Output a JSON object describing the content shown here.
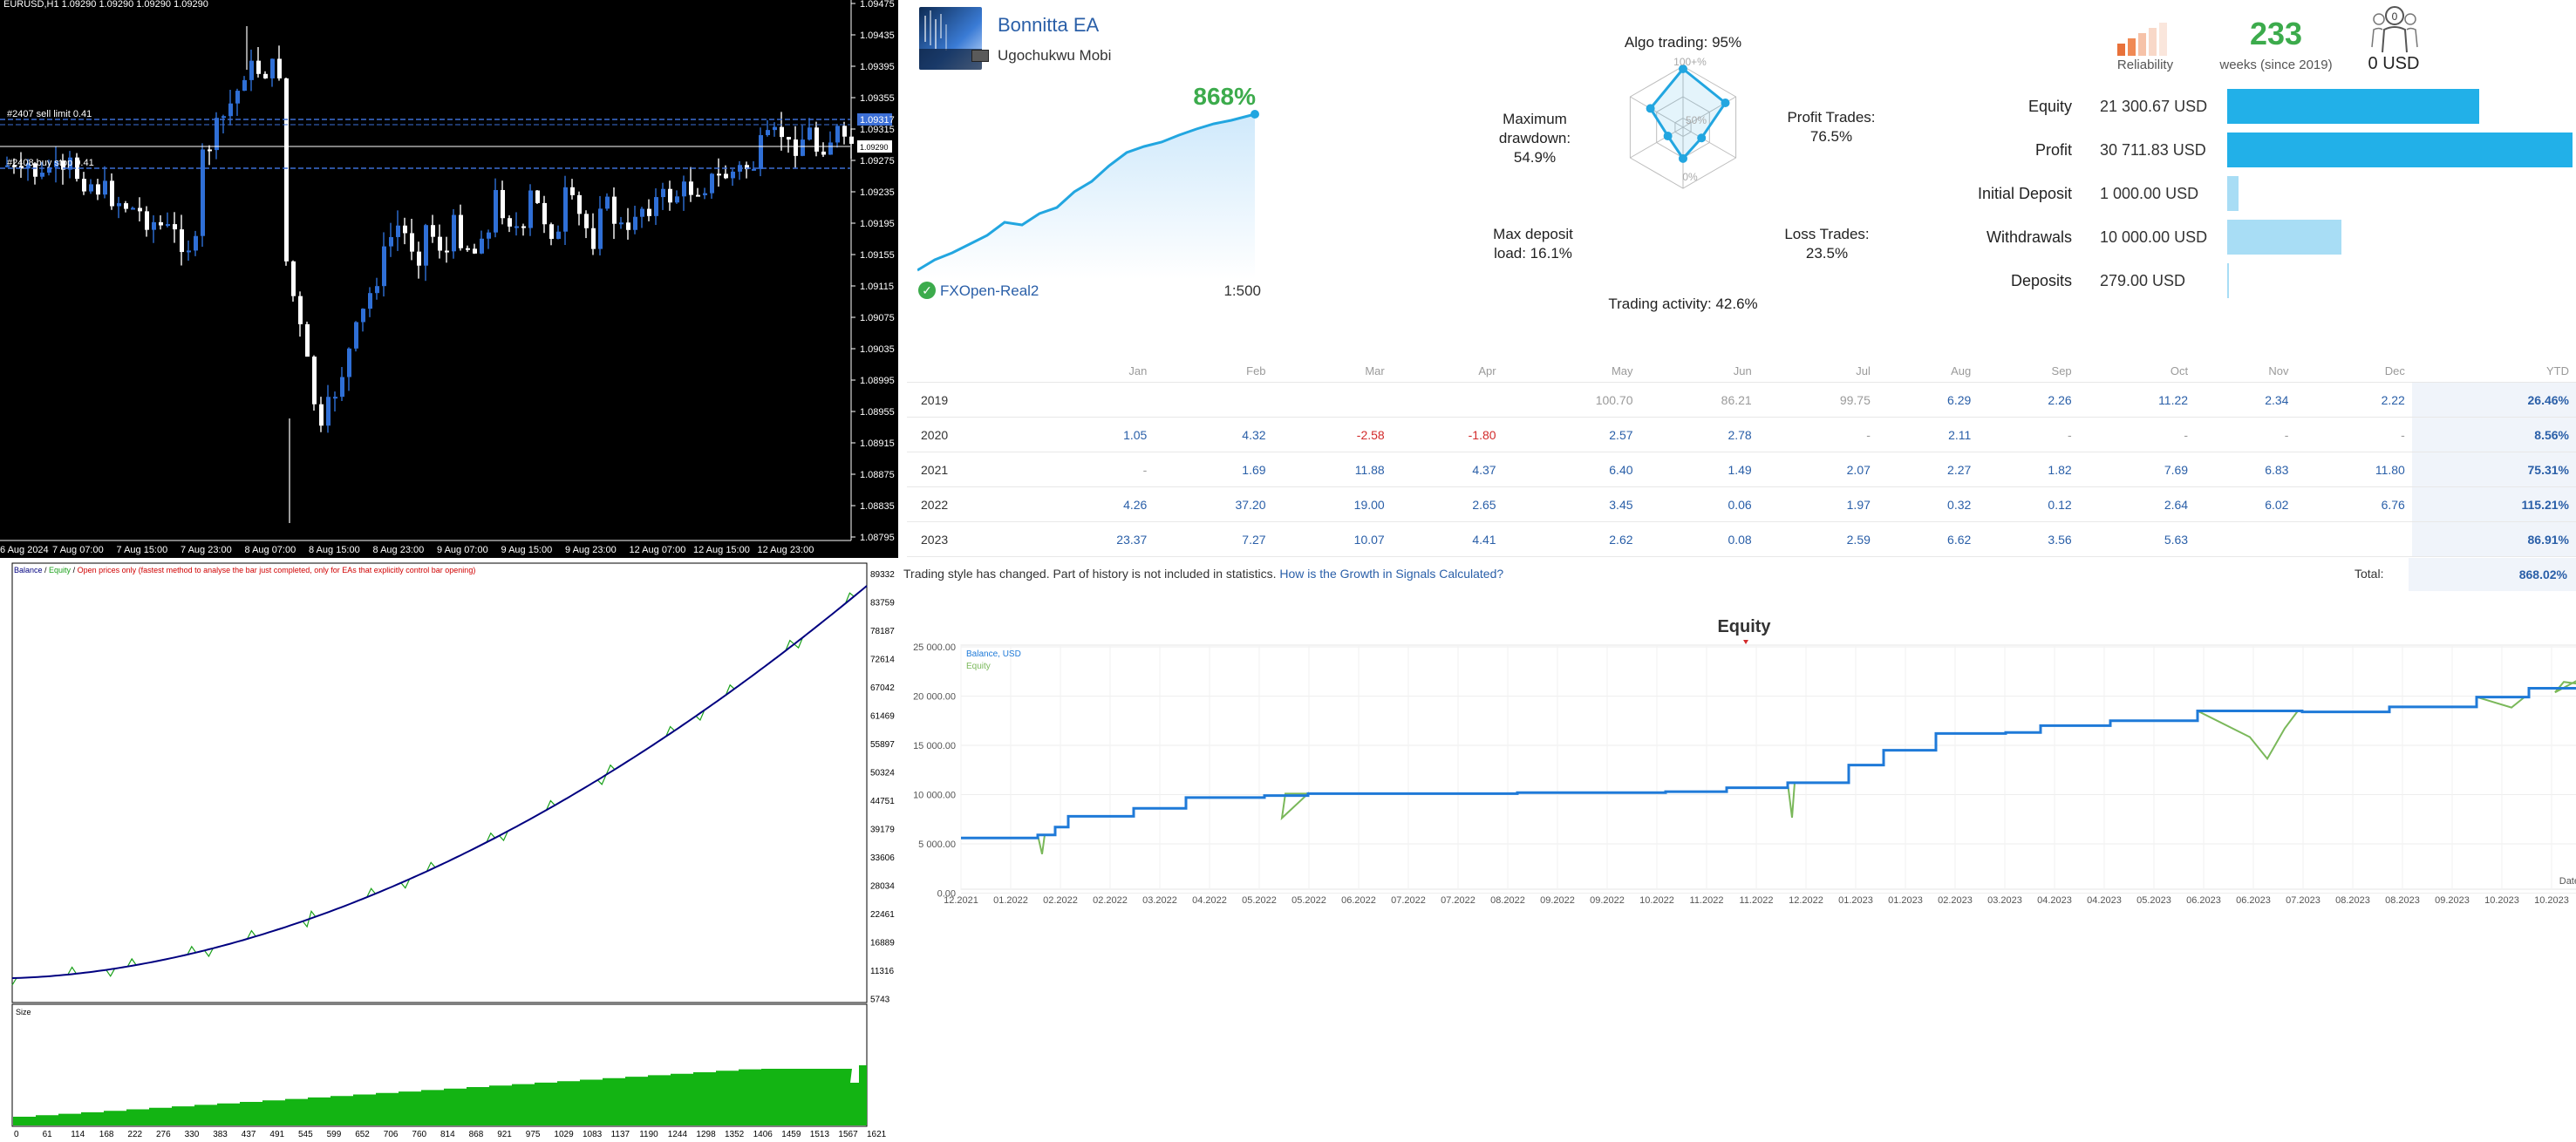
{
  "candle_chart": {
    "header": "EURUSD,H1  1.09290 1.09290 1.09290 1.09290",
    "sell_limit_label": "#2407 sell limit 0.41",
    "buy_stop_label": "#2408 buy stop 0.41",
    "price_ticks": [
      "1.09475",
      "1.09435",
      "1.09395",
      "1.09355",
      "1.09315",
      "1.09275",
      "1.09235",
      "1.09195",
      "1.09155",
      "1.09115",
      "1.09075",
      "1.09035",
      "1.08995",
      "1.08955",
      "1.08915",
      "1.08875",
      "1.08835",
      "1.08795"
    ],
    "current_price": "1.09290",
    "sell_limit_price": "1.09317",
    "time_labels": [
      "6 Aug 2024",
      "7 Aug 07:00",
      "7 Aug 15:00",
      "7 Aug 23:00",
      "8 Aug 07:00",
      "8 Aug 15:00",
      "8 Aug 23:00",
      "9 Aug 07:00",
      "9 Aug 15:00",
      "9 Aug 23:00",
      "12 Aug 07:00",
      "12 Aug 15:00",
      "12 Aug 23:00"
    ],
    "colors": {
      "bull": "#2f6fd6",
      "bear": "#ffffff",
      "line": "#ffffff",
      "order": "#3c6fd6"
    }
  },
  "tester_chart": {
    "legend_balance": "Balance",
    "legend_sep1": " / ",
    "legend_equity": "Equity",
    "legend_sep2": " / ",
    "legend_mode": "Open prices only (fastest method to analyse the bar just completed, only for EAs that explicitly control bar opening)",
    "y_ticks": [
      "89332",
      "83759",
      "78187",
      "72614",
      "67042",
      "61469",
      "55897",
      "50324",
      "44751",
      "39179",
      "33606",
      "28034",
      "22461",
      "16889",
      "11316",
      "5743"
    ],
    "x_ticks": [
      "0",
      "61",
      "114",
      "168",
      "222",
      "276",
      "330",
      "383",
      "437",
      "491",
      "545",
      "599",
      "652",
      "706",
      "760",
      "814",
      "868",
      "921",
      "975",
      "1029",
      "1083",
      "1137",
      "1190",
      "1244",
      "1298",
      "1352",
      "1406",
      "1459",
      "1513",
      "1567",
      "1621"
    ],
    "size_label": "Size",
    "colors": {
      "balance": "#000080",
      "equity": "#1aa01a",
      "size": "#13b413"
    }
  },
  "signal": {
    "name": "Bonnitta EA",
    "author": "Ugochukwu Mobi",
    "growth": "868%",
    "broker": "FXOpen-Real2",
    "leverage": "1:500"
  },
  "radar": {
    "algo": "Algo trading: 95%",
    "profit_label": "Profit Trades:",
    "profit_value": "76.5%",
    "loss_label": "Loss Trades:",
    "loss_value": "23.5%",
    "activity": "Trading activity: 42.6%",
    "deposit_load_label": "Max deposit",
    "deposit_load_value": "load: 16.1%",
    "drawdown_label1": "Maximum",
    "drawdown_label2": "drawdown:",
    "drawdown_value": "54.9%",
    "ring_100": "100+%",
    "ring_50": "50%",
    "ring_0": "0%",
    "values": {
      "algo": 0.95,
      "profit": 0.765,
      "loss": 0.235,
      "activity": 0.426,
      "deposit_load": 0.161,
      "drawdown": 0.549
    }
  },
  "stats": {
    "reliability_label": "Reliability",
    "weeks": "233",
    "weeks_label": "weeks (since 2019)",
    "subscribers_count": "0",
    "subscribers_value": "0 USD",
    "rows": [
      {
        "label": "Equity",
        "value": "21 300.67 USD",
        "share": 0.73,
        "color": "#22b0e8"
      },
      {
        "label": "Profit",
        "value": "30 711.83 USD",
        "share": 1.0,
        "color": "#22b0e8"
      },
      {
        "label": "Initial Deposit",
        "value": "1 000.00 USD",
        "share": 0.034,
        "color": "#a8ddf5"
      },
      {
        "label": "Withdrawals",
        "value": "10 000.00 USD",
        "share": 0.33,
        "color": "#a8ddf5"
      },
      {
        "label": "Deposits",
        "value": "279.00 USD",
        "share": 0.005,
        "color": "#a8ddf5"
      }
    ]
  },
  "monthly": {
    "headers": [
      "",
      "Jan",
      "Feb",
      "Mar",
      "Apr",
      "May",
      "Jun",
      "Jul",
      "Aug",
      "Sep",
      "Oct",
      "Nov",
      "Dec",
      "YTD"
    ],
    "rows": [
      [
        "2019",
        "",
        "",
        "",
        "",
        "100.70",
        "86.21",
        "99.75",
        "6.29",
        "2.26",
        "11.22",
        "2.34",
        "2.22",
        "26.46%"
      ],
      [
        "2020",
        "1.05",
        "4.32",
        "-2.58",
        "-1.80",
        "2.57",
        "2.78",
        "-",
        "2.11",
        "-",
        "-",
        "-",
        "-",
        "8.56%"
      ],
      [
        "2021",
        "-",
        "1.69",
        "11.88",
        "4.37",
        "6.40",
        "1.49",
        "2.07",
        "2.27",
        "1.82",
        "7.69",
        "6.83",
        "11.80",
        "75.31%"
      ],
      [
        "2022",
        "4.26",
        "37.20",
        "19.00",
        "2.65",
        "3.45",
        "0.06",
        "1.97",
        "0.32",
        "0.12",
        "2.64",
        "6.02",
        "6.76",
        "115.21%"
      ],
      [
        "2023",
        "23.37",
        "7.27",
        "10.07",
        "4.41",
        "2.62",
        "0.08",
        "2.59",
        "6.62",
        "3.56",
        "5.63",
        "",
        "",
        "86.91%"
      ]
    ],
    "note": "Trading style has changed. Part of history is not included in statistics.",
    "note_link": "How is the Growth in Signals Calculated?",
    "total_label": "Total:",
    "total_value": "868.02%"
  },
  "equity_chart": {
    "title": "Equity",
    "legend_balance": "Balance, USD",
    "legend_equity": "Equity",
    "x_label": "Date",
    "y_ticks": [
      "25 000.00",
      "20 000.00",
      "15 000.00",
      "10 000.00",
      "5 000.00",
      "0.00"
    ],
    "x_ticks": [
      "12.2021",
      "01.2022",
      "02.2022",
      "02.2022",
      "03.2022",
      "04.2022",
      "05.2022",
      "05.2022",
      "06.2022",
      "07.2022",
      "07.2022",
      "08.2022",
      "09.2022",
      "09.2022",
      "10.2022",
      "11.2022",
      "11.2022",
      "12.2022",
      "01.2023",
      "01.2023",
      "02.2023",
      "03.2023",
      "04.2023",
      "04.2023",
      "05.2023",
      "06.2023",
      "06.2023",
      "07.2023",
      "08.2023",
      "08.2023",
      "09.2023",
      "10.2023",
      "10.2023"
    ],
    "colors": {
      "balance": "#1f7ad8",
      "equity": "#7ab85a"
    }
  }
}
